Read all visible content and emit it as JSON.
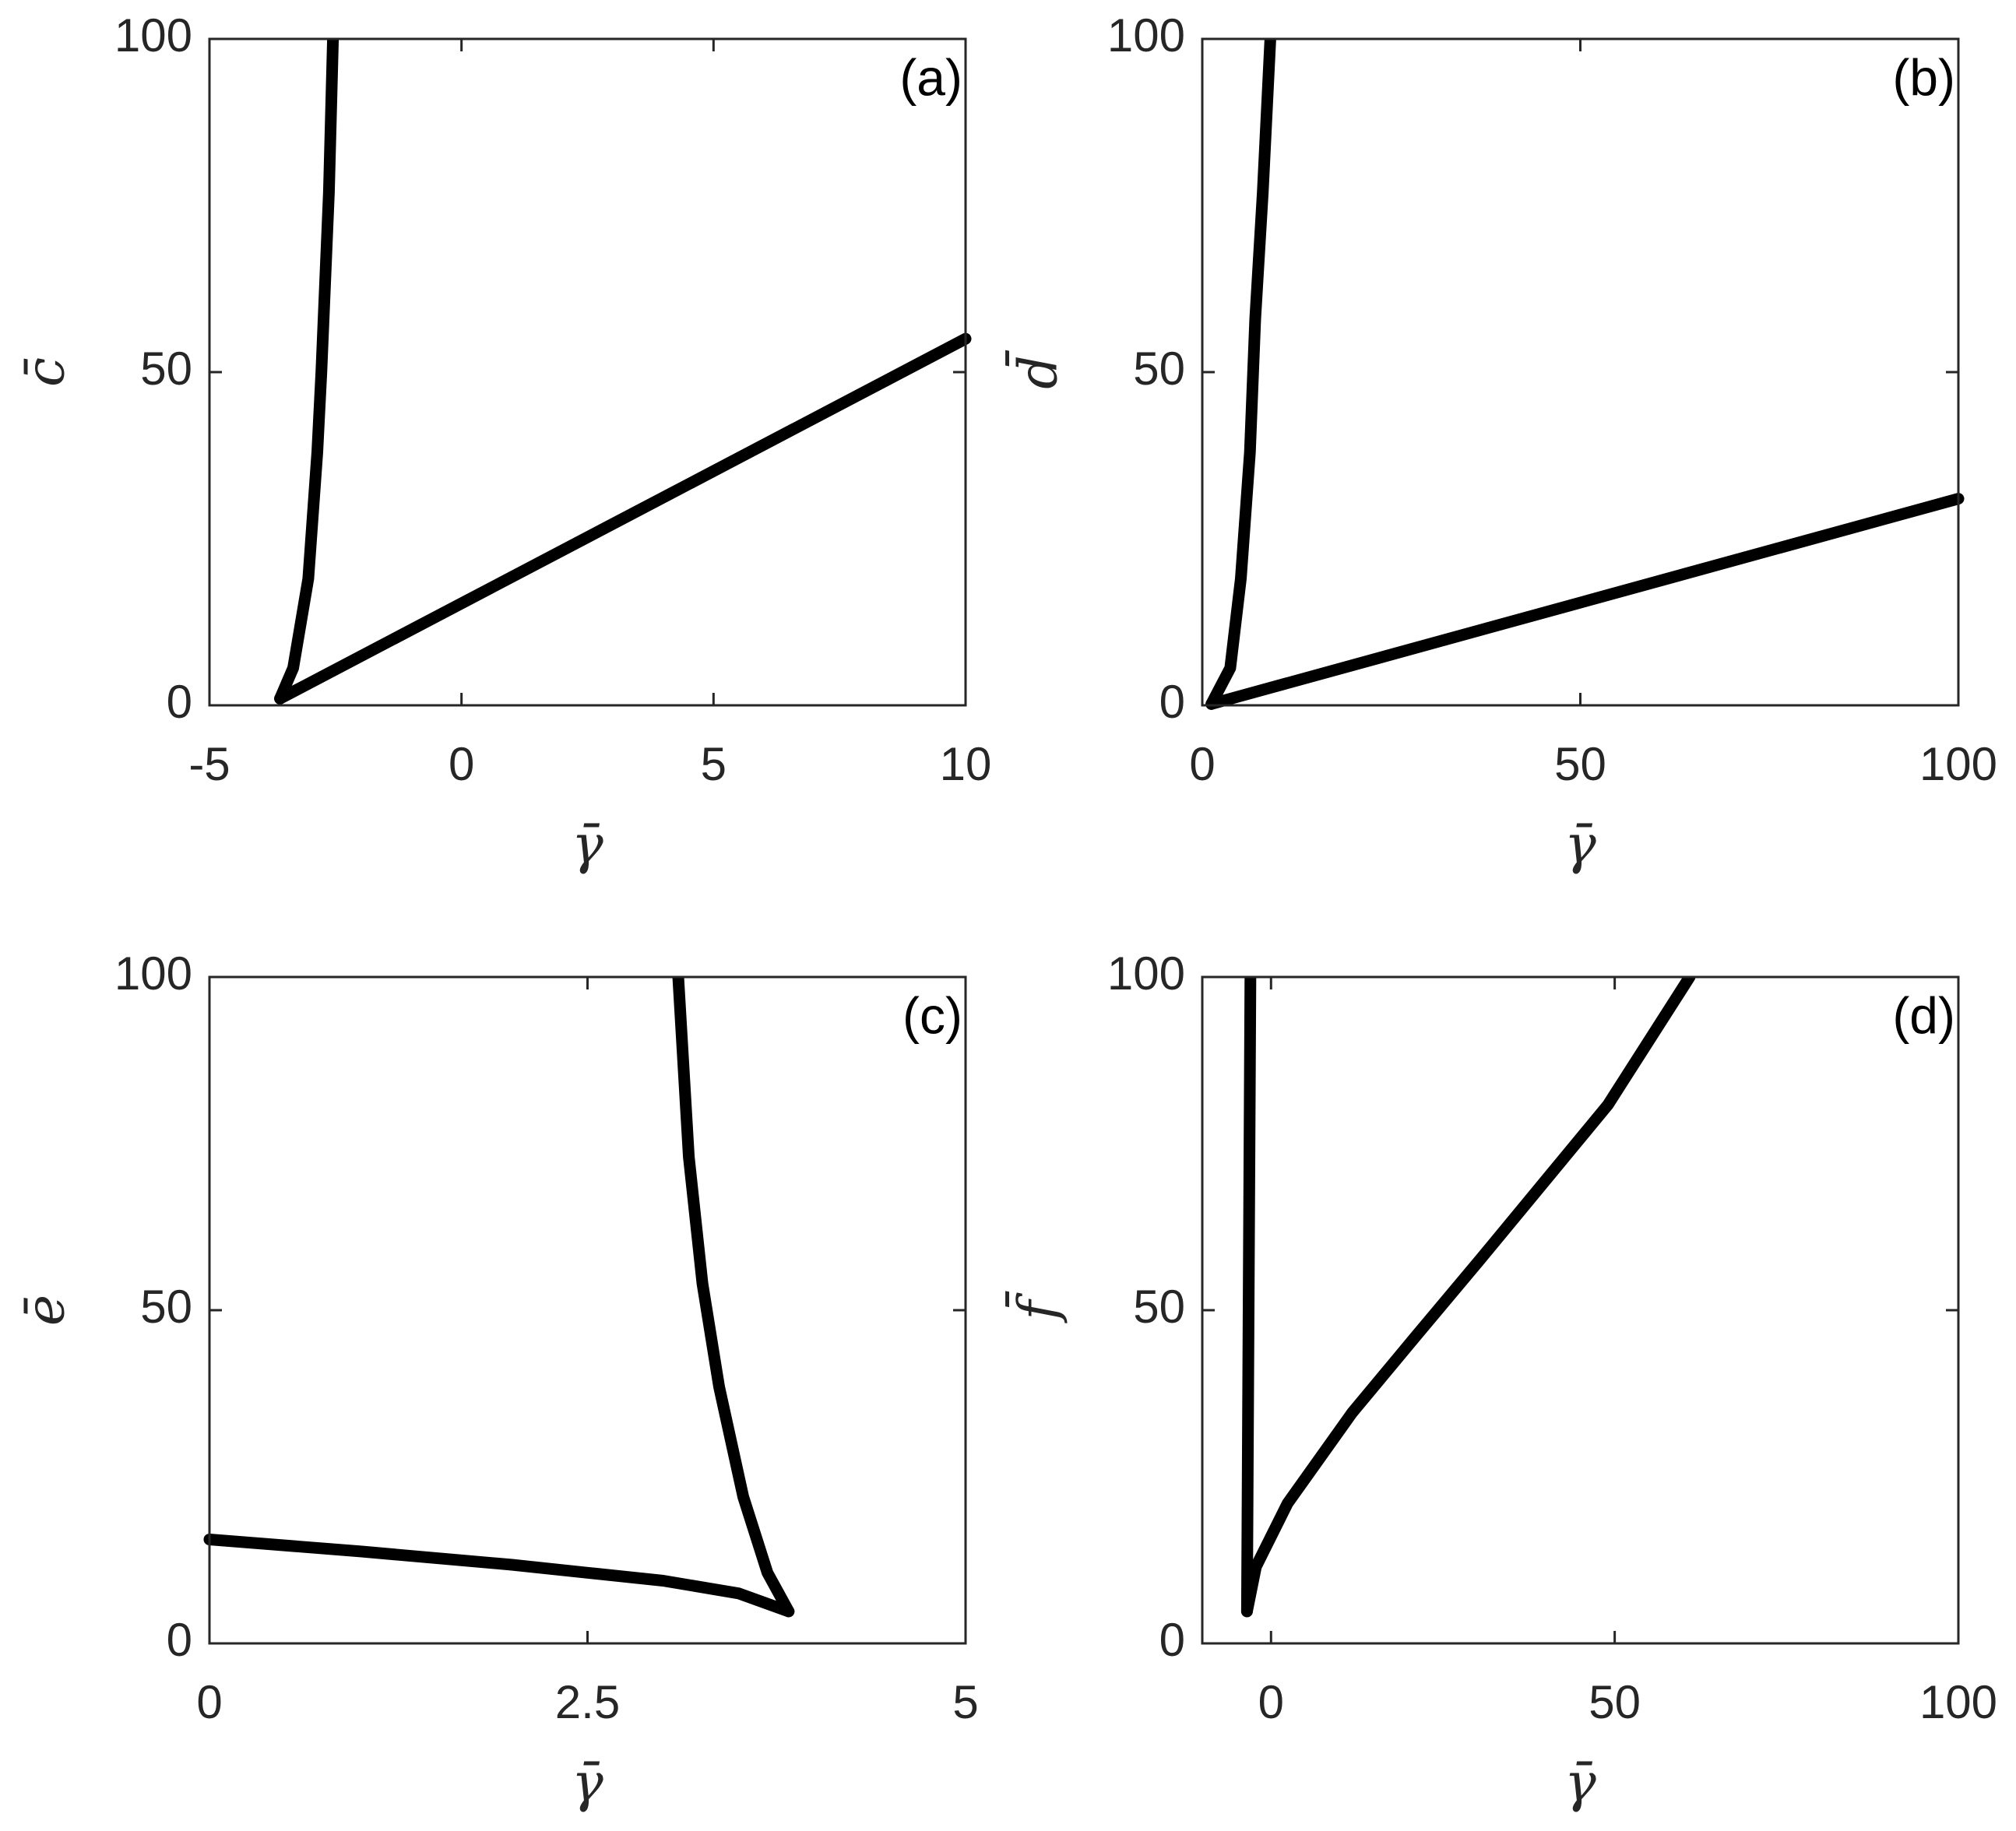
{
  "chart_data": [
    {
      "type": "line",
      "panel_label": "(a)",
      "xlabel": "γ̄",
      "ylabel": "c̄",
      "xlim": [
        -5,
        10
      ],
      "ylim": [
        0,
        100
      ],
      "xticks": [
        -5,
        0,
        5,
        10
      ],
      "yticks": [
        0,
        50,
        100
      ],
      "series": [
        {
          "color": "#000000",
          "x": [
            -3.6,
            -3.34,
            -3.04,
            -2.86,
            -2.78,
            -2.63,
            -2.55
          ],
          "values": [
            1,
            5.6,
            19,
            38,
            50,
            77,
            100
          ]
        },
        {
          "color": "#000000",
          "x": [
            -3.6,
            10
          ],
          "values": [
            1,
            55
          ]
        }
      ]
    },
    {
      "type": "line",
      "panel_label": "(b)",
      "xlabel": "γ̄",
      "ylabel": "d̄",
      "xlim": [
        0,
        100
      ],
      "ylim": [
        0,
        100
      ],
      "xticks": [
        0,
        50,
        100
      ],
      "yticks": [
        0,
        50,
        100
      ],
      "series": [
        {
          "color": "#000000",
          "x": [
            1.2,
            3.7,
            5.1,
            6.3,
            7,
            8,
            9
          ],
          "values": [
            0.2,
            5.6,
            19,
            38,
            58,
            77,
            100
          ]
        },
        {
          "color": "#000000",
          "x": [
            1.2,
            100
          ],
          "values": [
            0.2,
            31
          ]
        }
      ]
    },
    {
      "type": "line",
      "panel_label": "(c)",
      "xlabel": "γ̄",
      "ylabel": "ē",
      "xlim": [
        0,
        5
      ],
      "ylim": [
        0,
        100
      ],
      "xticks": [
        0,
        2.5,
        5
      ],
      "yticks": [
        0,
        50,
        100
      ],
      "series": [
        {
          "color": "#000000",
          "x": [
            0,
            1,
            2,
            2.5,
            3,
            3.5,
            3.83
          ],
          "values": [
            15.6,
            13.8,
            11.8,
            10.6,
            9.4,
            7.5,
            4.8
          ]
        },
        {
          "color": "#000000",
          "x": [
            3.83,
            3.69,
            3.53,
            3.37,
            3.26,
            3.17,
            3.1
          ],
          "values": [
            4.8,
            10.6,
            22,
            38.5,
            54,
            73,
            100
          ]
        }
      ]
    },
    {
      "type": "line",
      "panel_label": "(d)",
      "xlabel": "γ̄",
      "ylabel": "f̄",
      "xlim": [
        -10,
        100
      ],
      "ylim": [
        0,
        100
      ],
      "xticks": [
        0,
        50,
        100
      ],
      "yticks": [
        0,
        50,
        100
      ],
      "series": [
        {
          "color": "#000000",
          "x": [
            -3.5,
            -3
          ],
          "values": [
            4.8,
            100
          ]
        },
        {
          "color": "#000000",
          "x": [
            -3.5,
            -2.2,
            2.4,
            11.8,
            21,
            30.5,
            49,
            60.9
          ],
          "values": [
            4.8,
            11.5,
            21,
            34.6,
            46,
            57.7,
            80.8,
            100
          ]
        }
      ]
    }
  ]
}
